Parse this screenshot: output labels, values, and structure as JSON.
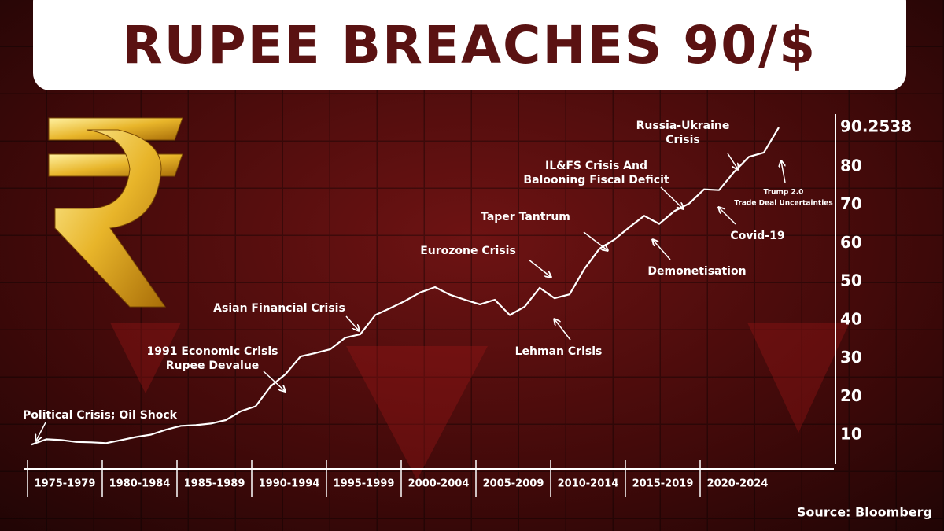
{
  "chart_data": {
    "type": "line",
    "title": "RUPEE BREACHES 90/$",
    "source": "Source: Bloomberg",
    "categories": [
      "1975-1979",
      "1980-1984",
      "1985-1989",
      "1990-1994",
      "1995-1999",
      "2000-2004",
      "2005-2009",
      "2010-2014",
      "2015-2019",
      "2020-2024"
    ],
    "series": [
      {
        "color": "#ffffff",
        "values": [
          [
            7.5,
            8.9,
            8.7,
            8.2,
            8.1
          ],
          [
            7.9,
            8.7,
            9.5,
            10.1,
            11.4
          ],
          [
            12.4,
            12.6,
            13.0,
            13.9,
            16.2
          ],
          [
            17.5,
            22.7,
            25.9,
            30.5,
            31.4
          ],
          [
            32.4,
            35.4,
            36.3,
            41.3,
            43.1
          ],
          [
            45.0,
            47.2,
            48.6,
            46.6,
            45.3
          ],
          [
            44.1,
            45.3,
            41.3,
            43.5,
            48.4
          ],
          [
            45.7,
            46.7,
            53.4,
            58.6,
            61.0
          ],
          [
            64.2,
            67.2,
            65.1,
            68.4,
            70.4
          ],
          [
            74.1,
            73.9,
            78.6,
            82.6,
            83.7,
            90.2538
          ]
        ]
      }
    ],
    "ylim": [
      2,
      92
    ],
    "yticks": [
      10,
      20,
      30,
      40,
      50,
      60,
      70,
      80,
      90.2538
    ],
    "annotations": [
      [
        "Political Crisis; Oil Shock"
      ],
      [
        "1991 Economic Crisis",
        "Rupee Devalue"
      ],
      [
        "Asian Financial Crisis"
      ],
      [
        "Eurozone Crisis"
      ],
      [
        "Lehman Crisis"
      ],
      [
        "Taper Tantrum"
      ],
      [
        "IL&FS Crisis And",
        "Balooning Fiscal Deficit"
      ],
      [
        "Demonetisation"
      ],
      [
        "Covid-19"
      ],
      [
        "Russia-Ukraine",
        "Crisis"
      ],
      [
        "Trump 2.0",
        "Trade Deal Uncertainties"
      ]
    ]
  }
}
